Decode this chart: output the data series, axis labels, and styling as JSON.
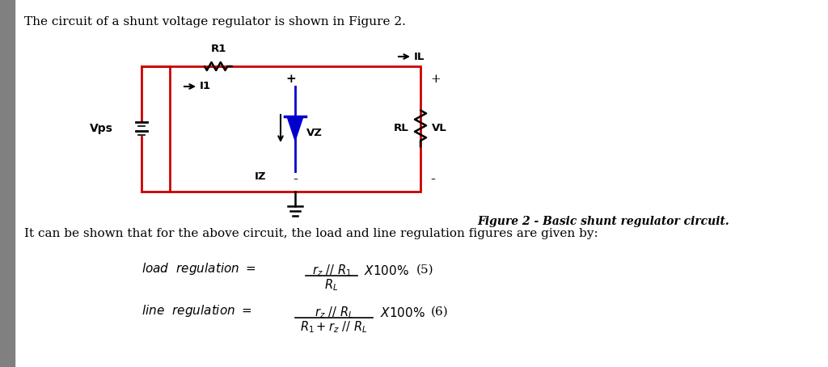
{
  "bg_color": "#ffffff",
  "left_bar_color": "#808080",
  "title_text": "The circuit of a shunt voltage regulator is shown in Figure 2.",
  "body_text": "It can be shown that for the above circuit, the load and line regulation figures are given by:",
  "figure_caption": "Figure 2 - Basic shunt regulator circuit.",
  "circuit_rect_color": "#cc0000",
  "zener_color": "#0000cc",
  "title_fontsize": 11,
  "body_fontsize": 11,
  "caption_fontsize": 10
}
